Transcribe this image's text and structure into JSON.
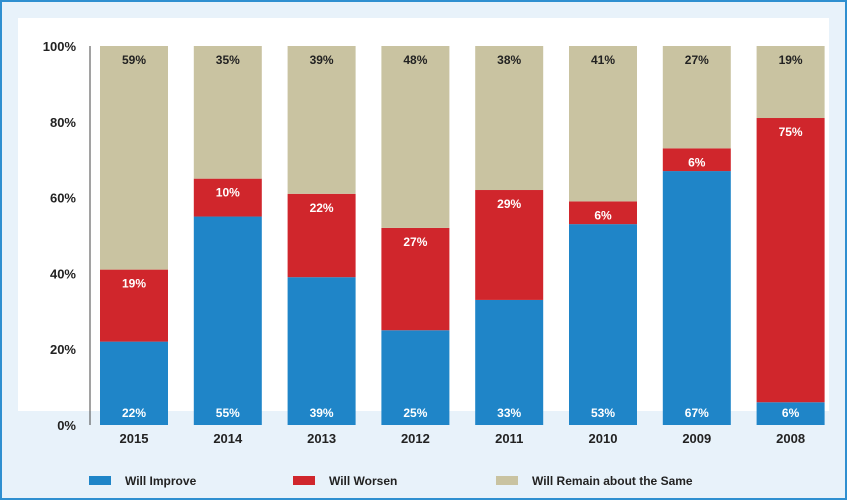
{
  "chart_data": {
    "type": "bar",
    "stacked": true,
    "categories": [
      "2015",
      "2014",
      "2013",
      "2012",
      "2011",
      "2010",
      "2009",
      "2008"
    ],
    "series": [
      {
        "name": "Will Improve",
        "color": "#1f85c8",
        "label_color": "#ffffff",
        "values": [
          22,
          55,
          39,
          25,
          33,
          53,
          67,
          6
        ],
        "labels": [
          "22%",
          "55%",
          "39%",
          "25%",
          "33%",
          "53%",
          "67%",
          "6%"
        ]
      },
      {
        "name": "Will Worsen",
        "color": "#d0262c",
        "label_color": "#ffffff",
        "values": [
          19,
          10,
          22,
          27,
          29,
          6,
          6,
          75
        ],
        "labels": [
          "19%",
          "10%",
          "22%",
          "27%",
          "29%",
          "6%",
          "6%",
          "75%"
        ]
      },
      {
        "name": "Will Remain about the Same",
        "color": "#c9c3a1",
        "label_color": "#222222",
        "values": [
          59,
          35,
          39,
          48,
          38,
          41,
          27,
          19
        ],
        "labels": [
          "59%",
          "35%",
          "39%",
          "48%",
          "38%",
          "41%",
          "27%",
          "19%"
        ]
      }
    ],
    "ylim": [
      0,
      100
    ],
    "yticks": [
      0,
      20,
      40,
      60,
      80,
      100
    ],
    "ytick_labels": [
      "0%",
      "20%",
      "40%",
      "60%",
      "80%",
      "100%"
    ],
    "legend_position": "bottom",
    "grid": false,
    "background": "#e8f2fa",
    "border_color": "#2f8fd0"
  }
}
